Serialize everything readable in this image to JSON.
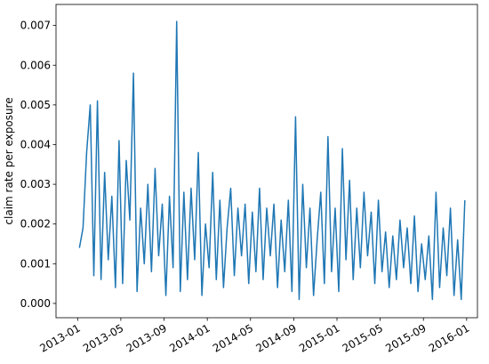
{
  "chart_data": {
    "type": "line",
    "y_label": "claim rate per exposure",
    "x": [
      "2013-01",
      "2013-01",
      "2013-01",
      "2013-02",
      "2013-02",
      "2013-02",
      "2013-03",
      "2013-03",
      "2013-03",
      "2013-04",
      "2013-04",
      "2013-04",
      "2013-05",
      "2013-05",
      "2013-05",
      "2013-06",
      "2013-06",
      "2013-06",
      "2013-07",
      "2013-07",
      "2013-07",
      "2013-08",
      "2013-08",
      "2013-08",
      "2013-09",
      "2013-09",
      "2013-09",
      "2013-10",
      "2013-10",
      "2013-10",
      "2013-11",
      "2013-11",
      "2013-11",
      "2013-12",
      "2013-12",
      "2013-12",
      "2014-01",
      "2014-01",
      "2014-01",
      "2014-02",
      "2014-02",
      "2014-02",
      "2014-03",
      "2014-03",
      "2014-03",
      "2014-04",
      "2014-04",
      "2014-04",
      "2014-05",
      "2014-05",
      "2014-05",
      "2014-06",
      "2014-06",
      "2014-06",
      "2014-07",
      "2014-07",
      "2014-07",
      "2014-08",
      "2014-08",
      "2014-08",
      "2014-09",
      "2014-09",
      "2014-09",
      "2014-10",
      "2014-10",
      "2014-10",
      "2014-11",
      "2014-11",
      "2014-11",
      "2014-12",
      "2014-12",
      "2014-12",
      "2015-01",
      "2015-01",
      "2015-01",
      "2015-02",
      "2015-02",
      "2015-02",
      "2015-03",
      "2015-03",
      "2015-03",
      "2015-04",
      "2015-04",
      "2015-04",
      "2015-05",
      "2015-05",
      "2015-05",
      "2015-06",
      "2015-06",
      "2015-06",
      "2015-07",
      "2015-07",
      "2015-07",
      "2015-08",
      "2015-08",
      "2015-08",
      "2015-09",
      "2015-09",
      "2015-09",
      "2015-10",
      "2015-10",
      "2015-10",
      "2015-11",
      "2015-11",
      "2015-11",
      "2015-12",
      "2015-12",
      "2015-12"
    ],
    "series": [
      {
        "color": "#1f77b4",
        "values": [
          0.0014,
          0.0019,
          0.0038,
          0.005,
          0.0007,
          0.0051,
          0.0006,
          0.0033,
          0.0011,
          0.0027,
          0.0004,
          0.0041,
          0.0005,
          0.0036,
          0.0021,
          0.0058,
          0.0003,
          0.0024,
          0.001,
          0.003,
          0.0008,
          0.0034,
          0.0012,
          0.0025,
          0.0002,
          0.0027,
          0.0009,
          0.0071,
          0.0003,
          0.0028,
          0.0006,
          0.0029,
          0.0011,
          0.0038,
          0.0002,
          0.002,
          0.0009,
          0.0033,
          0.0006,
          0.0026,
          0.0004,
          0.0019,
          0.0029,
          0.0007,
          0.0024,
          0.0012,
          0.0025,
          0.0005,
          0.0023,
          0.0008,
          0.0029,
          0.0006,
          0.0024,
          0.0012,
          0.0025,
          0.0004,
          0.0021,
          0.0008,
          0.0026,
          0.0003,
          0.0047,
          0.0001,
          0.003,
          0.0009,
          0.0024,
          0.0002,
          0.0016,
          0.0028,
          0.0005,
          0.0042,
          0.0008,
          0.0024,
          0.0003,
          0.0039,
          0.0011,
          0.0031,
          0.0006,
          0.0024,
          0.0009,
          0.0028,
          0.0012,
          0.0023,
          0.0005,
          0.0026,
          0.0008,
          0.0018,
          0.0004,
          0.0017,
          0.0006,
          0.0021,
          0.0009,
          0.0019,
          0.0005,
          0.0022,
          0.0003,
          0.0015,
          0.0006,
          0.0017,
          0.0001,
          0.0028,
          0.0004,
          0.0019,
          0.0007,
          0.0024,
          0.0002,
          0.0016,
          0.0001,
          0.0026
        ]
      }
    ],
    "xlim": [
      "2012-11",
      "2016-02"
    ],
    "xticks": [
      "2013-01",
      "2013-05",
      "2013-09",
      "2014-01",
      "2014-05",
      "2014-09",
      "2015-01",
      "2015-05",
      "2015-09",
      "2016-01"
    ],
    "ylim": [
      -0.00036,
      0.00753
    ],
    "yticks": [
      {
        "value": 0,
        "label": "0.000"
      },
      {
        "value": 0.001,
        "label": "0.001"
      },
      {
        "value": 0.002,
        "label": "0.002"
      },
      {
        "value": 0.003,
        "label": "0.003"
      },
      {
        "value": 0.004,
        "label": "0.004"
      },
      {
        "value": 0.005,
        "label": "0.005"
      },
      {
        "value": 0.006,
        "label": "0.006"
      },
      {
        "value": 0.007,
        "label": "0.007"
      }
    ],
    "grid": false
  }
}
